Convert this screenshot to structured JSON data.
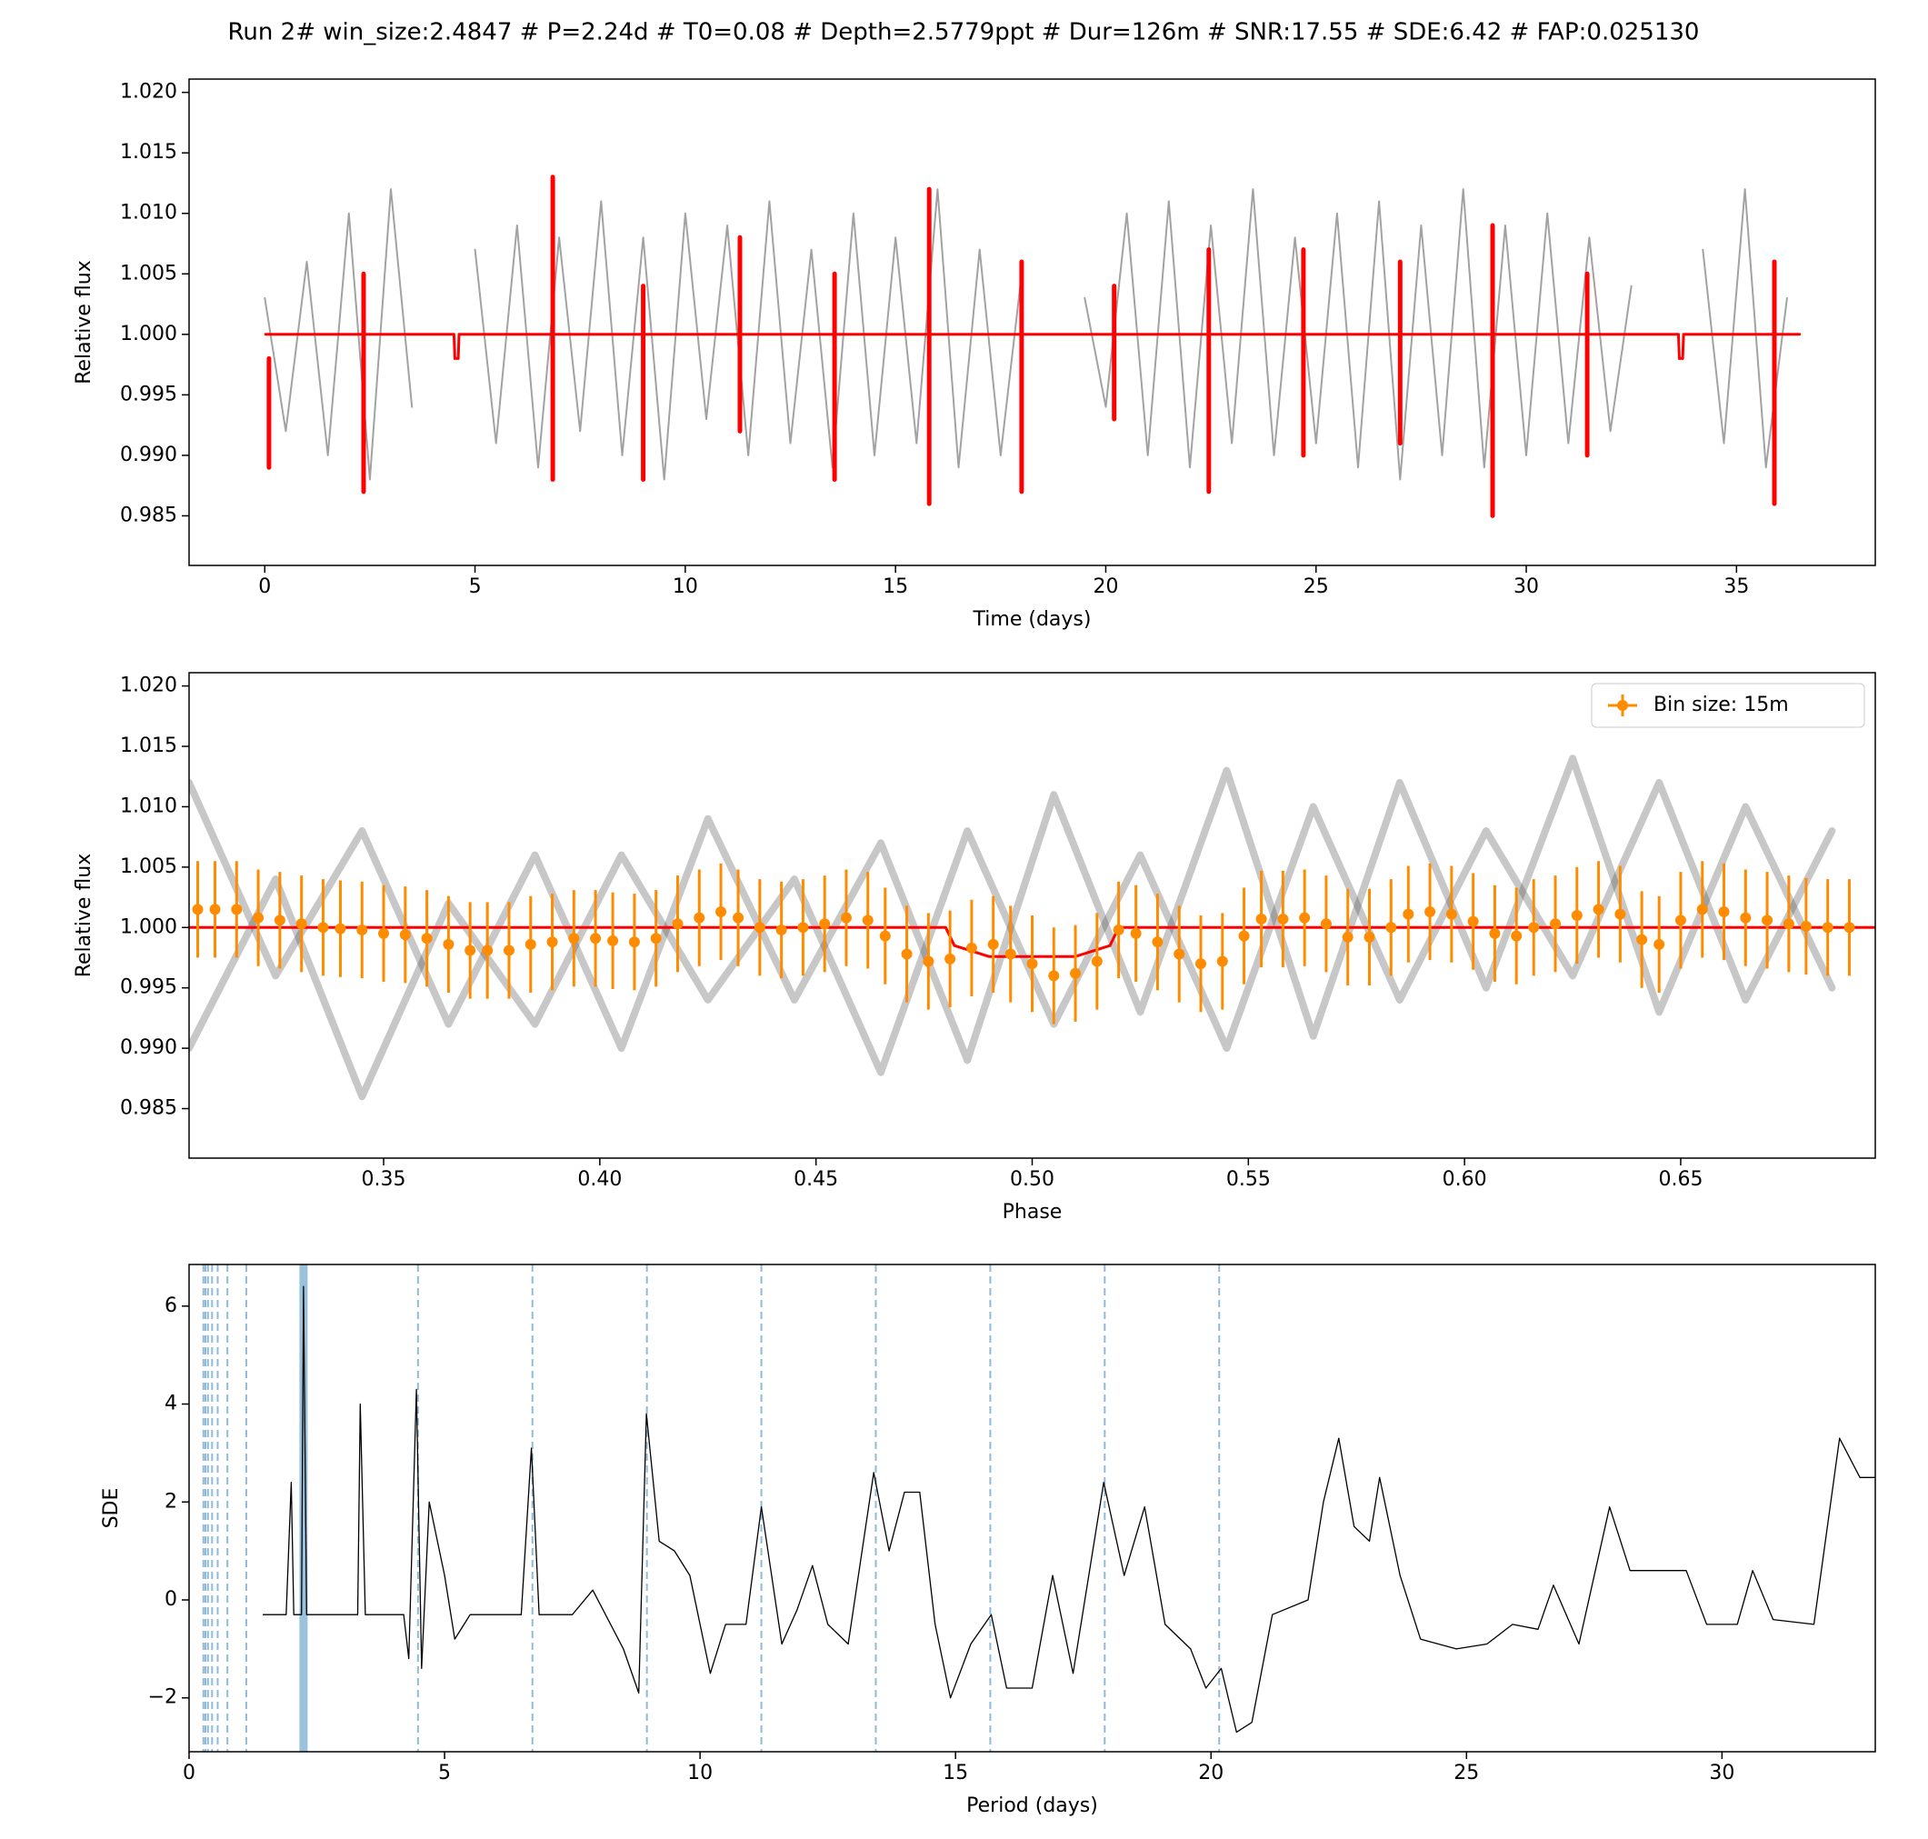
{
  "title": "Run 2# win_size:2.4847 # P=2.24d # T0=0.08 # Depth=2.5779ppt # Dur=126m # SNR:17.55 # SDE:6.42 # FAP:0.025130",
  "chart_data": [
    {
      "type": "line",
      "xlabel": "Time (days)",
      "ylabel": "Relative flux",
      "xlim": [
        -1.8,
        38.3
      ],
      "ylim": [
        0.9809,
        1.0211
      ],
      "xticks": [
        0,
        5,
        10,
        15,
        20,
        25,
        30,
        35
      ],
      "yticks": [
        0.985,
        {
          "value": 0.99,
          "label": "0.990"
        },
        0.995,
        {
          "value": 1,
          "label": "1.000"
        },
        1.005,
        {
          "value": 1.01,
          "label": "1.010"
        },
        1.015,
        {
          "value": 1.02,
          "label": "1.020"
        }
      ],
      "series": [
        {
          "color": "#555555",
          "width": 2,
          "opacity": 0.55,
          "x": [
            0,
            0.5,
            1,
            1.5,
            2,
            2.5,
            3,
            3.5,
            4.25,
            5,
            5.5,
            6,
            6.5,
            7,
            7.5,
            8,
            8.5,
            9,
            9.5,
            10,
            10.5,
            11,
            11.5,
            12,
            12.5,
            13,
            13.5,
            14,
            14.5,
            15,
            15.5,
            16,
            16.5,
            17,
            17.5,
            18,
            18.9,
            19.5,
            20,
            20.5,
            21,
            21.5,
            22,
            22.5,
            23,
            23.5,
            24,
            24.5,
            25,
            25.5,
            26,
            26.5,
            27,
            27.5,
            28,
            28.5,
            29,
            29.5,
            30,
            30.5,
            31,
            31.5,
            32,
            32.5,
            33.4,
            34.2,
            34.7,
            35.2,
            35.7,
            36.2
          ],
          "values": [
            1.003,
            0.992,
            1.006,
            0.99,
            1.01,
            0.988,
            1.012,
            0.994,
            null,
            1.007,
            0.991,
            1.009,
            0.989,
            1.008,
            0.992,
            1.011,
            0.99,
            1.008,
            0.988,
            1.01,
            0.993,
            1.009,
            0.99,
            1.011,
            0.991,
            1.007,
            0.989,
            1.01,
            0.99,
            1.008,
            0.991,
            1.012,
            0.989,
            1.007,
            0.99,
            1.005,
            null,
            1.003,
            0.994,
            1.01,
            0.99,
            1.011,
            0.989,
            1.009,
            0.991,
            1.012,
            0.99,
            1.008,
            0.991,
            1.01,
            0.989,
            1.011,
            0.988,
            1.009,
            0.99,
            1.012,
            0.989,
            1.009,
            0.99,
            1.01,
            0.991,
            1.008,
            0.992,
            1.004,
            null,
            1.007,
            0.991,
            1.012,
            0.989,
            1.003
          ]
        },
        {
          "color": "#ff0000",
          "width": 5,
          "opacity": 1,
          "x": [
            0.1,
            0.1,
            0.1,
            2.35,
            2.35,
            2.35,
            6.85,
            6.85,
            6.85,
            9.0,
            9.0,
            9.0,
            11.3,
            11.3,
            11.3,
            13.55,
            13.55,
            13.55,
            15.8,
            15.8,
            15.8,
            18.0,
            18.0,
            18.0,
            20.2,
            20.2,
            20.2,
            22.45,
            22.45,
            22.45,
            24.7,
            24.7,
            24.7,
            27.0,
            27.0,
            27.0,
            29.2,
            29.2,
            29.2,
            31.45,
            31.45,
            31.45,
            35.9,
            35.9
          ],
          "values": [
            0.998,
            0.989,
            null,
            1.005,
            0.987,
            null,
            1.013,
            0.988,
            null,
            1.004,
            0.988,
            null,
            1.008,
            0.992,
            null,
            1.005,
            0.988,
            null,
            1.012,
            0.986,
            null,
            1.006,
            0.987,
            null,
            1.004,
            0.993,
            null,
            1.007,
            0.987,
            null,
            1.007,
            0.99,
            null,
            1.006,
            0.991,
            null,
            1.009,
            0.985,
            null,
            1.005,
            0.99,
            null,
            1.006,
            0.986
          ]
        },
        {
          "color": "#ff0000",
          "width": 3,
          "opacity": 1,
          "x": [
            0.02,
            4.5,
            4.52,
            4.6,
            4.62,
            33.62,
            33.64,
            33.72,
            33.74,
            36.5
          ],
          "values": [
            1,
            1,
            0.998,
            0.998,
            1,
            1,
            0.998,
            0.998,
            1,
            1
          ]
        }
      ]
    },
    {
      "type": "line",
      "xlabel": "Phase",
      "ylabel": "Relative flux",
      "legend": "upper right",
      "xlim": [
        0.305,
        0.695
      ],
      "ylim": [
        0.9809,
        1.0211
      ],
      "xticks": [
        0.35,
        {
          "value": 0.4,
          "label": "0.40"
        },
        0.45,
        {
          "value": 0.5,
          "label": "0.50"
        },
        0.55,
        {
          "value": 0.6,
          "label": "0.60"
        },
        0.65
      ],
      "yticks": [
        0.985,
        {
          "value": 0.99,
          "label": "0.990"
        },
        0.995,
        {
          "value": 1,
          "label": "1.000"
        },
        1.005,
        {
          "value": 1.01,
          "label": "1.010"
        },
        1.015,
        {
          "value": 1.02,
          "label": "1.020"
        }
      ],
      "series": [
        {
          "color": "#444444",
          "width": 8,
          "opacity": 0.3,
          "x": [
            0.305,
            0.325,
            0.345,
            0.365,
            0.385,
            0.405,
            0.425,
            0.445,
            0.465,
            0.485,
            0.505,
            0.525,
            0.545,
            0.565,
            0.585,
            0.605,
            0.625,
            0.645,
            0.665,
            0.685
          ],
          "values": [
            1.012,
            0.996,
            1.008,
            0.992,
            1.006,
            0.99,
            1.009,
            0.994,
            1.007,
            0.989,
            1.011,
            0.993,
            1.013,
            0.991,
            1.012,
            0.995,
            1.014,
            0.993,
            1.01,
            0.995
          ]
        },
        {
          "color": "#444444",
          "width": 8,
          "opacity": 0.3,
          "x": [
            0.305,
            0.325,
            0.345,
            0.365,
            0.385,
            0.405,
            0.425,
            0.445,
            0.465,
            0.485,
            0.505,
            0.525,
            0.545,
            0.565,
            0.585,
            0.605,
            0.625,
            0.645,
            0.665,
            0.685
          ],
          "values": [
            0.99,
            1.004,
            0.986,
            1.002,
            0.992,
            1.006,
            0.994,
            1.004,
            0.988,
            1.008,
            0.992,
            1.006,
            0.99,
            1.01,
            0.994,
            1.008,
            0.996,
            1.012,
            0.994,
            1.008
          ]
        },
        {
          "color": "#ff0000",
          "width": 3,
          "opacity": 1,
          "x": [
            0.305,
            0.48,
            0.482,
            0.49,
            0.51,
            0.518,
            0.52,
            0.695
          ],
          "values": [
            1,
            1,
            0.9985,
            0.9976,
            0.9976,
            0.9985,
            1,
            1
          ]
        },
        {
          "name": "Bin size: 15m",
          "color": "#ff8c00",
          "width": 3,
          "opacity": 1,
          "x": [
            0.307,
            0.311,
            0.316,
            0.321,
            0.326,
            0.331,
            0.336,
            0.34,
            0.345,
            0.35,
            0.355,
            0.36,
            0.365,
            0.37,
            0.374,
            0.379,
            0.384,
            0.389,
            0.394,
            0.399,
            0.403,
            0.408,
            0.413,
            0.418,
            0.423,
            0.428,
            0.432,
            0.437,
            0.442,
            0.447,
            0.452,
            0.457,
            0.462,
            0.466,
            0.471,
            0.476,
            0.481,
            0.486,
            0.491,
            0.495,
            0.5,
            0.505,
            0.51,
            0.515,
            0.52,
            0.524,
            0.529,
            0.534,
            0.539,
            0.544,
            0.549,
            0.553,
            0.558,
            0.563,
            0.568,
            0.573,
            0.578,
            0.583,
            0.587,
            0.592,
            0.597,
            0.602,
            0.607,
            0.612,
            0.616,
            0.621,
            0.626,
            0.631,
            0.636,
            0.641,
            0.645,
            0.65,
            0.655,
            0.66,
            0.665,
            0.67,
            0.675,
            0.679,
            0.684,
            0.689
          ],
          "values": [
            1.0015,
            1.0015,
            1.0015,
            1.0008,
            1.0006,
            1.0003,
            1.0,
            0.9999,
            0.9998,
            0.9995,
            0.9994,
            0.9991,
            0.9986,
            0.9981,
            0.9981,
            0.9981,
            0.9986,
            0.9988,
            0.9991,
            0.9991,
            0.9989,
            0.9988,
            0.9991,
            1.0003,
            1.0008,
            1.0013,
            1.0008,
            1.0,
            0.9998,
            1.0,
            1.0003,
            1.0008,
            1.0006,
            0.9993,
            0.9978,
            0.9972,
            0.9974,
            0.9983,
            0.9986,
            0.9978,
            0.997,
            0.996,
            0.9962,
            0.9972,
            0.9998,
            0.9995,
            0.9988,
            0.9978,
            0.997,
            0.9972,
            0.9993,
            1.0007,
            1.0007,
            1.0008,
            1.0003,
            0.9992,
            0.9992,
            1.0,
            1.0011,
            1.0013,
            1.0011,
            1.0005,
            0.9995,
            0.9993,
            1.0,
            1.0003,
            1.001,
            1.0015,
            1.0011,
            0.999,
            0.9986,
            1.0006,
            1.0015,
            1.0013,
            1.0008,
            1.0006,
            1.0003,
            1.0001,
            1.0,
            1.0
          ],
          "errors": [
            0.004,
            0.004,
            0.004,
            0.004,
            0.004,
            0.004,
            0.004,
            0.004,
            0.004,
            0.004,
            0.004,
            0.004,
            0.004,
            0.004,
            0.004,
            0.004,
            0.004,
            0.004,
            0.004,
            0.004,
            0.004,
            0.004,
            0.004,
            0.004,
            0.004,
            0.004,
            0.004,
            0.004,
            0.004,
            0.004,
            0.004,
            0.004,
            0.004,
            0.004,
            0.004,
            0.004,
            0.004,
            0.004,
            0.004,
            0.004,
            0.004,
            0.004,
            0.004,
            0.004,
            0.004,
            0.004,
            0.004,
            0.004,
            0.004,
            0.004,
            0.004,
            0.004,
            0.004,
            0.004,
            0.004,
            0.004,
            0.004,
            0.004,
            0.004,
            0.004,
            0.004,
            0.004,
            0.004,
            0.004,
            0.004,
            0.004,
            0.004,
            0.004,
            0.004,
            0.004,
            0.004,
            0.004,
            0.004,
            0.004,
            0.004,
            0.004,
            0.004,
            0.004,
            0.004,
            0.004
          ]
        }
      ]
    },
    {
      "type": "line",
      "xlabel": "Period (days)",
      "ylabel": "SDE",
      "xlim": [
        0,
        33
      ],
      "ylim": [
        -3.1,
        6.85
      ],
      "xticks": [
        0,
        5,
        10,
        15,
        20,
        25,
        30
      ],
      "yticks": [
        {
          "value": -2,
          "label": "−2"
        },
        0,
        2,
        4,
        6
      ],
      "period": 2.24,
      "period_color": "#1f77b4",
      "harmonics": [
        0.28,
        0.32,
        0.37,
        0.45,
        0.56,
        0.75,
        1.12,
        4.48,
        6.72,
        8.96,
        11.2,
        13.44,
        15.68,
        17.92,
        20.16
      ],
      "series": [
        {
          "color": "#000000",
          "width": 1.3,
          "opacity": 1,
          "x": [
            1.45,
            1.9,
            2.0,
            2.05,
            2.2,
            2.24,
            2.3,
            3.3,
            3.35,
            3.45,
            4.2,
            4.3,
            4.45,
            4.55,
            4.7,
            5.0,
            5.2,
            5.5,
            6.5,
            6.7,
            6.85,
            7.5,
            7.9,
            8.5,
            8.8,
            8.95,
            9.2,
            9.5,
            9.8,
            10.2,
            10.5,
            10.9,
            11.2,
            11.6,
            11.9,
            12.2,
            12.5,
            12.9,
            13.4,
            13.7,
            14.0,
            14.3,
            14.6,
            14.9,
            15.3,
            15.7,
            16.0,
            16.5,
            16.9,
            17.3,
            17.9,
            18.3,
            18.7,
            19.1,
            19.6,
            19.9,
            20.2,
            20.5,
            20.8,
            21.2,
            21.9,
            22.2,
            22.5,
            22.8,
            23.1,
            23.3,
            23.7,
            24.1,
            24.8,
            25.4,
            25.9,
            26.4,
            26.7,
            27.2,
            27.8,
            28.2,
            29.3,
            29.7,
            30.3,
            30.6,
            31.0,
            31.8,
            32.3,
            32.7,
            33
          ],
          "values": [
            -0.3,
            -0.3,
            2.4,
            -0.3,
            -0.3,
            6.4,
            -0.3,
            -0.3,
            4.0,
            -0.3,
            -0.3,
            -1.2,
            4.3,
            -1.4,
            2.0,
            0.5,
            -0.8,
            -0.3,
            -0.3,
            3.1,
            -0.3,
            -0.3,
            0.2,
            -1.0,
            -1.9,
            3.8,
            1.2,
            1.0,
            0.5,
            -1.5,
            -0.5,
            -0.5,
            1.9,
            -0.9,
            -0.2,
            0.7,
            -0.5,
            -0.9,
            2.6,
            1.0,
            2.2,
            2.2,
            -0.5,
            -2.0,
            -0.9,
            -0.3,
            -1.8,
            -1.8,
            0.5,
            -1.5,
            2.4,
            0.5,
            1.9,
            -0.5,
            -1.0,
            -1.8,
            -1.4,
            -2.7,
            -2.5,
            -0.3,
            0.0,
            2.0,
            3.3,
            1.5,
            1.2,
            2.5,
            0.5,
            -0.8,
            -1.0,
            -0.9,
            -0.5,
            -0.6,
            0.3,
            -0.9,
            1.9,
            0.6,
            0.6,
            -0.5,
            -0.5,
            0.6,
            -0.4,
            -0.5,
            3.3,
            2.5,
            2.5
          ]
        }
      ]
    }
  ]
}
